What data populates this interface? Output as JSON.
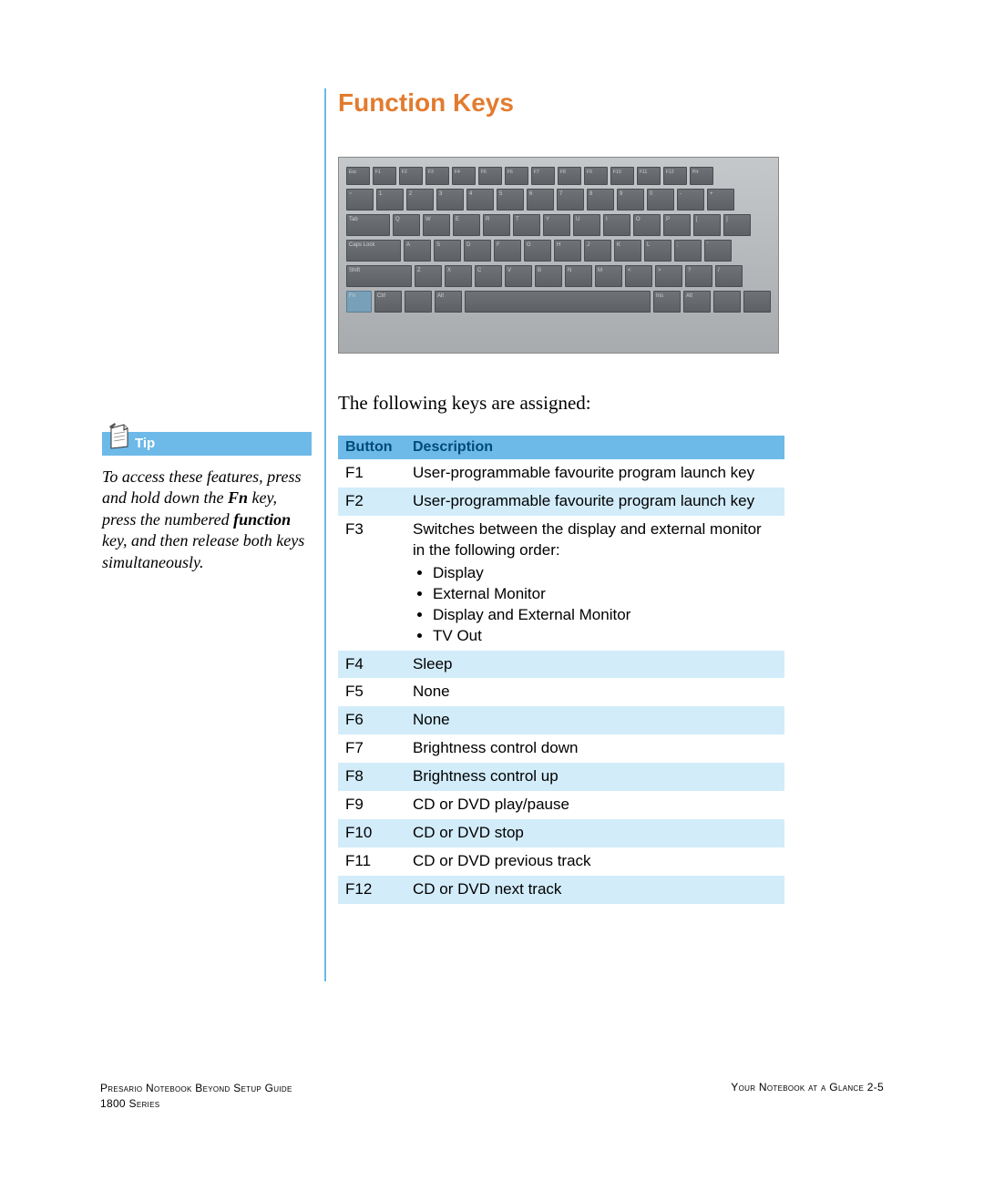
{
  "heading": "Function Keys",
  "intro": "The following keys are assigned:",
  "tip": {
    "label": "Tip",
    "body_parts": [
      {
        "text": "To access these features, press and hold down the ",
        "bold": false
      },
      {
        "text": "Fn",
        "bold": true
      },
      {
        "text": " key, press the numbered ",
        "bold": false
      },
      {
        "text": "function",
        "bold": true
      },
      {
        "text": " key, and then release both keys simultaneously.",
        "bold": false
      }
    ]
  },
  "table": {
    "headers": {
      "button": "Button",
      "description": "Description"
    },
    "rows": [
      {
        "button": "F1",
        "desc": "User-programmable favourite program launch key",
        "alt": false,
        "list": null
      },
      {
        "button": "F2",
        "desc": "User-programmable favourite program launch key",
        "alt": true,
        "list": null
      },
      {
        "button": "F3",
        "desc": "Switches between the display and external monitor in the following order:",
        "alt": false,
        "list": [
          "Display",
          "External Monitor",
          "Display and External Monitor",
          "TV Out"
        ]
      },
      {
        "button": "F4",
        "desc": "Sleep",
        "alt": true,
        "list": null
      },
      {
        "button": "F5",
        "desc": "None",
        "alt": false,
        "list": null
      },
      {
        "button": "F6",
        "desc": "None",
        "alt": true,
        "list": null
      },
      {
        "button": "F7",
        "desc": "Brightness control down",
        "alt": false,
        "list": null
      },
      {
        "button": "F8",
        "desc": "Brightness control up",
        "alt": true,
        "list": null
      },
      {
        "button": "F9",
        "desc": "CD or DVD play/pause",
        "alt": false,
        "list": null
      },
      {
        "button": "F10",
        "desc": "CD or DVD stop",
        "alt": true,
        "list": null
      },
      {
        "button": "F11",
        "desc": "CD or DVD previous track",
        "alt": false,
        "list": null
      },
      {
        "button": "F12",
        "desc": "CD or DVD next track",
        "alt": true,
        "list": null
      }
    ]
  },
  "footer": {
    "left_line1": "Presario Notebook Beyond Setup Guide",
    "left_line2": "1800 Series",
    "right": "Your Notebook at a Glance   2-5"
  },
  "colors": {
    "accent_blue": "#6db9e8",
    "heading_orange": "#e37b2f",
    "table_header_text": "#004a78",
    "alt_row": "#d2ecfa",
    "background": "#ffffff"
  },
  "keyboard": {
    "row0": [
      "Esc",
      "F1",
      "F2",
      "F3",
      "F4",
      "F5",
      "F6",
      "F7",
      "F8",
      "F9",
      "F10",
      "F11",
      "F12",
      "Prt"
    ],
    "row1": [
      "~",
      "1",
      "2",
      "3",
      "4",
      "5",
      "6",
      "7",
      "8",
      "9",
      "0",
      "-",
      "+"
    ],
    "row2": [
      "Tab",
      "Q",
      "W",
      "E",
      "R",
      "T",
      "Y",
      "U",
      "I",
      "O",
      "P",
      "[",
      "]"
    ],
    "row3": [
      "Caps Lock",
      "A",
      "S",
      "D",
      "F",
      "G",
      "H",
      "J",
      "K",
      "L",
      ";",
      "'"
    ],
    "row4": [
      "Shift",
      "Z",
      "X",
      "C",
      "V",
      "B",
      "N",
      "M",
      "<",
      ">",
      "?",
      "/"
    ],
    "row5": [
      "Fn",
      "Ctrl",
      "",
      "Alt",
      "",
      "Ins",
      "Alt",
      "",
      ""
    ]
  }
}
